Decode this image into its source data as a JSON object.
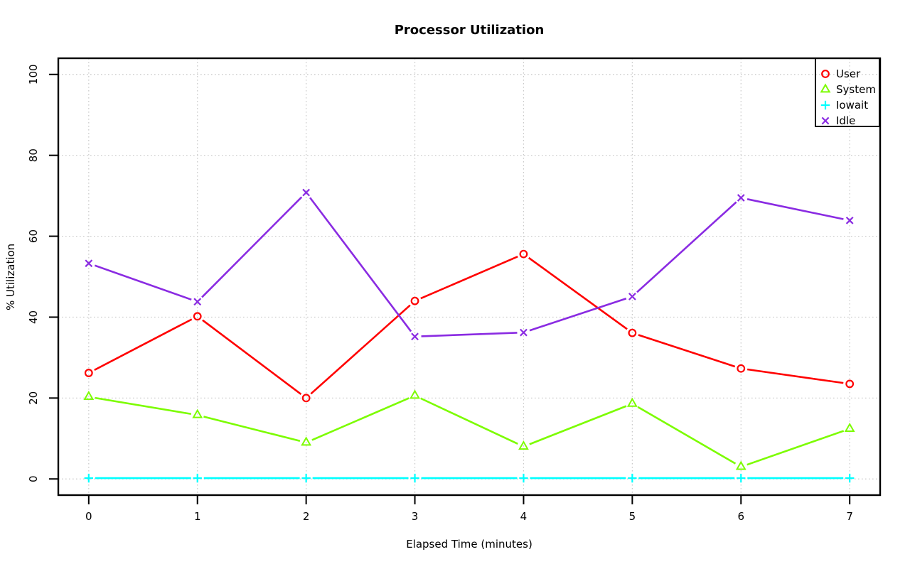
{
  "chart": {
    "title": "Processor Utilization",
    "xlabel": "Elapsed Time (minutes)",
    "ylabel": "% Utilization"
  },
  "chart_data": {
    "type": "line",
    "title": "Processor Utilization",
    "xlabel": "Elapsed Time (minutes)",
    "ylabel": "% Utilization",
    "x": [
      0,
      1,
      2,
      3,
      4,
      5,
      6,
      7
    ],
    "xlim": [
      0,
      7
    ],
    "ylim": [
      0,
      100
    ],
    "x_ticks": [
      "0",
      "1",
      "2",
      "3",
      "4",
      "5",
      "6",
      "7"
    ],
    "y_ticks": [
      "0",
      "20",
      "40",
      "60",
      "80",
      "100"
    ],
    "y_tick_values": [
      0,
      20,
      40,
      60,
      80,
      100
    ],
    "grid": true,
    "grid_color": "#C9C9C9",
    "grid_style": "dotted",
    "axis_color": "#000000",
    "legend_position": "top-right",
    "series": [
      {
        "name": "User",
        "color": "#FF0000",
        "marker": "circle",
        "values": [
          26.2,
          40.2,
          20.0,
          44.0,
          55.6,
          36.1,
          27.3,
          23.5
        ]
      },
      {
        "name": "System",
        "color": "#7CFC00",
        "marker": "triangle",
        "values": [
          20.3,
          15.8,
          9.0,
          20.6,
          8.0,
          18.6,
          3.0,
          12.4
        ]
      },
      {
        "name": "Iowait",
        "color": "#00FFFF",
        "marker": "plus",
        "values": [
          0.2,
          0.2,
          0.2,
          0.2,
          0.2,
          0.2,
          0.2,
          0.2
        ]
      },
      {
        "name": "Idle",
        "color": "#8A2BE2",
        "marker": "x",
        "values": [
          53.3,
          43.8,
          70.8,
          35.2,
          36.2,
          45.1,
          69.5,
          63.9
        ]
      }
    ]
  }
}
